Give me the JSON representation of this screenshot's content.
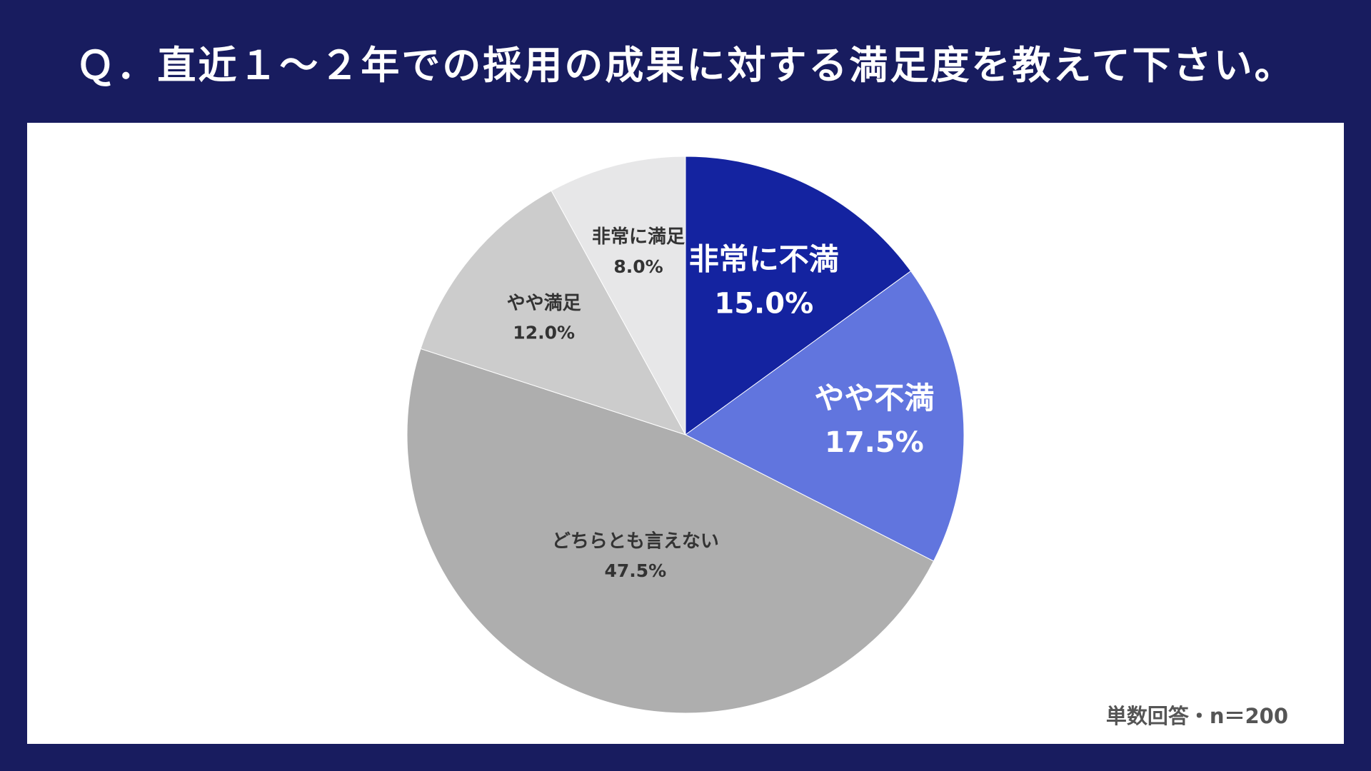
{
  "title": "Ｑ．直近１～２年での採用の成果に対する満足度を教えて下さい。",
  "note": "単数回答・n＝200",
  "chart_data": {
    "type": "pie",
    "title": "Ｑ．直近１～２年での採用の成果に対する満足度を教えて下さい。",
    "start": "12 o'clock",
    "direction": "clockwise",
    "slices": [
      {
        "name": "非常に不満",
        "value": 15.0,
        "label": "15.0%",
        "color": "#1423a0",
        "text_color": "#ffffff"
      },
      {
        "name": "やや不満",
        "value": 17.5,
        "label": "17.5%",
        "color": "#6175de",
        "text_color": "#ffffff"
      },
      {
        "name": "どちらとも言えない",
        "value": 47.5,
        "label": "47.5%",
        "color": "#aeaeae",
        "text_color": "#333333"
      },
      {
        "name": "やや満足",
        "value": 12.0,
        "label": "12.0%",
        "color": "#cccccc",
        "text_color": "#333333"
      },
      {
        "name": "非常に満足",
        "value": 8.0,
        "label": "8.0%",
        "color": "#e7e7e8",
        "text_color": "#333333"
      }
    ]
  }
}
